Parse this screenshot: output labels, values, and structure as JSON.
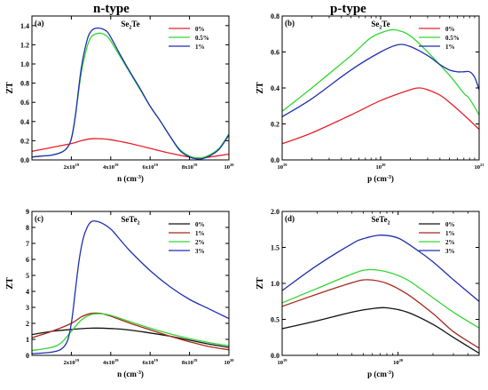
{
  "headers": {
    "left": "n-type",
    "right": "p-type"
  },
  "chart_data": [
    {
      "id": "a",
      "panel_label": "(a)",
      "type": "line",
      "title": "Se2Te",
      "title_base": "Se",
      "title_sub": "2",
      "title_tail": "Te",
      "xlabel": "n (cm",
      "xlabel_sup": "-3",
      "xlabel_close": ")",
      "ylabel": "ZT",
      "xscale": "linear",
      "xlim": [
        0,
        100
      ],
      "xunit": "1e18 cm^-3",
      "ylim": [
        0,
        1.5
      ],
      "xticks": [
        {
          "v": 20,
          "base": "2x10",
          "exp": "19"
        },
        {
          "v": 40,
          "base": "4x10",
          "exp": "19"
        },
        {
          "v": 60,
          "base": "6x10",
          "exp": "19"
        },
        {
          "v": 80,
          "base": "8x10",
          "exp": "19"
        },
        {
          "v": 100,
          "base": "10",
          "exp": "20"
        }
      ],
      "yticks": [
        {
          "v": 0.0,
          "label": "0.0"
        },
        {
          "v": 0.2,
          "label": "0.2"
        },
        {
          "v": 0.4,
          "label": "0.4"
        },
        {
          "v": 0.6,
          "label": "0.6"
        },
        {
          "v": 0.8,
          "label": "0.8"
        },
        {
          "v": 1.0,
          "label": "1.0"
        },
        {
          "v": 1.2,
          "label": "1.2"
        },
        {
          "v": 1.4,
          "label": "1.4"
        }
      ],
      "legend": "top-right",
      "series": [
        {
          "name": "0%",
          "color": "#e8202a",
          "x": [
            0,
            10,
            20,
            25,
            30,
            35,
            40,
            50,
            60,
            70,
            80,
            85,
            90,
            100
          ],
          "y": [
            0.09,
            0.13,
            0.17,
            0.2,
            0.22,
            0.22,
            0.21,
            0.17,
            0.12,
            0.07,
            0.03,
            0.02,
            0.03,
            0.06
          ]
        },
        {
          "name": "0.5%",
          "color": "#33d633",
          "x": [
            0,
            5,
            10,
            15,
            18,
            20,
            22,
            25,
            28,
            30,
            32,
            35,
            38,
            40,
            45,
            50,
            55,
            60,
            65,
            70,
            75,
            80,
            84,
            86,
            90,
            95,
            100
          ],
          "y": [
            0.03,
            0.04,
            0.05,
            0.08,
            0.13,
            0.22,
            0.45,
            0.9,
            1.18,
            1.28,
            1.31,
            1.32,
            1.29,
            1.24,
            1.07,
            0.9,
            0.73,
            0.56,
            0.41,
            0.25,
            0.11,
            0.04,
            0.02,
            0.02,
            0.05,
            0.12,
            0.27
          ]
        },
        {
          "name": "1%",
          "color": "#1f2fb0",
          "x": [
            0,
            5,
            10,
            15,
            18,
            20,
            22,
            25,
            28,
            30,
            32,
            35,
            38,
            40,
            45,
            50,
            55,
            60,
            65,
            70,
            75,
            80,
            84,
            86,
            90,
            95,
            100
          ],
          "y": [
            0.03,
            0.04,
            0.05,
            0.08,
            0.13,
            0.22,
            0.45,
            0.95,
            1.25,
            1.34,
            1.37,
            1.37,
            1.34,
            1.28,
            1.09,
            0.91,
            0.74,
            0.56,
            0.41,
            0.25,
            0.1,
            0.03,
            0.01,
            0.01,
            0.04,
            0.11,
            0.26
          ]
        }
      ]
    },
    {
      "id": "b",
      "panel_label": "(b)",
      "type": "line",
      "title": "Se2Te",
      "title_base": "Se",
      "title_sub": "2",
      "title_tail": "Te",
      "xlabel": "p (cm",
      "xlabel_sup": "-3",
      "xlabel_close": ")",
      "ylabel": "ZT",
      "xscale": "log",
      "xlim": [
        1e+19,
        1e+21
      ],
      "ylim": [
        0,
        0.8
      ],
      "xticks": [
        {
          "v": 1e+19,
          "base": "10",
          "exp": "19"
        },
        {
          "v": 1e+20,
          "base": "10",
          "exp": "20"
        },
        {
          "v": 1e+21,
          "base": "10",
          "exp": "21"
        }
      ],
      "yticks": [
        {
          "v": 0.0,
          "label": "0.0"
        },
        {
          "v": 0.2,
          "label": "0.2"
        },
        {
          "v": 0.4,
          "label": "0.4"
        },
        {
          "v": 0.6,
          "label": "0.6"
        },
        {
          "v": 0.8,
          "label": "0.8"
        }
      ],
      "legend": "top-right",
      "series": [
        {
          "name": "0%",
          "color": "#e8202a",
          "x": [
            1e+19,
            2e+19,
            5e+19,
            1e+20,
            2e+20,
            2.5e+20,
            3e+20,
            4e+20,
            5e+20,
            7e+20,
            1e+21
          ],
          "y": [
            0.09,
            0.15,
            0.25,
            0.33,
            0.39,
            0.4,
            0.39,
            0.36,
            0.32,
            0.25,
            0.17
          ]
        },
        {
          "name": "0.5%",
          "color": "#33d633",
          "x": [
            1e+19,
            2e+19,
            5e+19,
            8e+19,
            1.2e+20,
            1.5e+20,
            2e+20,
            3e+20,
            5e+20,
            7e+20,
            8e+20,
            1e+21
          ],
          "y": [
            0.27,
            0.4,
            0.58,
            0.68,
            0.72,
            0.72,
            0.69,
            0.6,
            0.47,
            0.37,
            0.34,
            0.25
          ]
        },
        {
          "name": "1%",
          "color": "#1f2fb0",
          "x": [
            1e+19,
            2e+19,
            5e+19,
            1e+20,
            1.5e+20,
            2e+20,
            3e+20,
            4e+20,
            5e+20,
            6e+20,
            7e+20,
            8e+20,
            9e+20,
            1e+21
          ],
          "y": [
            0.24,
            0.34,
            0.5,
            0.6,
            0.64,
            0.63,
            0.58,
            0.53,
            0.5,
            0.49,
            0.49,
            0.49,
            0.46,
            0.39
          ]
        }
      ]
    },
    {
      "id": "c",
      "panel_label": "(c)",
      "type": "line",
      "title": "SeTe2",
      "title_base": "SeTe",
      "title_sub": "2",
      "title_tail": "",
      "xlabel": "n (cm",
      "xlabel_sup": "-3",
      "xlabel_close": ")",
      "ylabel": "ZT",
      "xscale": "linear",
      "xlim": [
        0,
        100
      ],
      "xunit": "1e18 cm^-3",
      "ylim": [
        0,
        9
      ],
      "xticks": [
        {
          "v": 20,
          "base": "2x10",
          "exp": "19"
        },
        {
          "v": 40,
          "base": "4x10",
          "exp": "19"
        },
        {
          "v": 60,
          "base": "6x10",
          "exp": "19"
        },
        {
          "v": 80,
          "base": "8x10",
          "exp": "19"
        },
        {
          "v": 100,
          "base": "10",
          "exp": "20"
        }
      ],
      "yticks": [
        {
          "v": 0,
          "label": "0"
        },
        {
          "v": 1,
          "label": "1"
        },
        {
          "v": 2,
          "label": "2"
        },
        {
          "v": 3,
          "label": "3"
        },
        {
          "v": 4,
          "label": "4"
        },
        {
          "v": 5,
          "label": "5"
        },
        {
          "v": 6,
          "label": "6"
        },
        {
          "v": 7,
          "label": "7"
        },
        {
          "v": 8,
          "label": "8"
        },
        {
          "v": 9,
          "label": "9"
        }
      ],
      "legend": "top-right",
      "series": [
        {
          "name": "0%",
          "color": "#111111",
          "x": [
            0,
            10,
            20,
            30,
            40,
            50,
            60,
            70,
            80,
            90,
            100
          ],
          "y": [
            1.3,
            1.5,
            1.62,
            1.7,
            1.68,
            1.58,
            1.4,
            1.2,
            0.95,
            0.7,
            0.5
          ]
        },
        {
          "name": "1%",
          "color": "#a52a1a",
          "x": [
            0,
            10,
            20,
            25,
            30,
            35,
            40,
            50,
            60,
            70,
            80,
            90,
            100
          ],
          "y": [
            1.1,
            1.5,
            2.0,
            2.4,
            2.62,
            2.62,
            2.45,
            2.0,
            1.6,
            1.2,
            0.85,
            0.55,
            0.35
          ]
        },
        {
          "name": "2%",
          "color": "#33d633",
          "x": [
            0,
            10,
            15,
            20,
            25,
            30,
            35,
            40,
            50,
            60,
            70,
            80,
            90,
            100
          ],
          "y": [
            0.3,
            0.5,
            0.8,
            1.5,
            2.2,
            2.55,
            2.6,
            2.5,
            2.1,
            1.7,
            1.35,
            1.05,
            0.8,
            0.6
          ]
        },
        {
          "name": "3%",
          "color": "#1f2fb0",
          "x": [
            0,
            10,
            15,
            18,
            20,
            22,
            24,
            26,
            28,
            30,
            32,
            35,
            40,
            45,
            50,
            60,
            70,
            80,
            90,
            100
          ],
          "y": [
            0.1,
            0.2,
            0.4,
            0.9,
            2.0,
            4.0,
            6.0,
            7.3,
            8.0,
            8.35,
            8.4,
            8.3,
            7.9,
            7.2,
            6.5,
            5.3,
            4.3,
            3.5,
            2.9,
            2.3
          ]
        }
      ]
    },
    {
      "id": "d",
      "panel_label": "(d)",
      "type": "line",
      "title": "SeTe2",
      "title_base": "SeTe",
      "title_sub": "2",
      "title_tail": "",
      "xlabel": "p (cm",
      "xlabel_sup": "-3",
      "xlabel_close": ")",
      "ylabel": "ZT",
      "xscale": "log",
      "xlim": [
        1e+19,
        5e+20
      ],
      "ylim": [
        0,
        2
      ],
      "xticks": [
        {
          "v": 1e+19,
          "base": "10",
          "exp": "19"
        },
        {
          "v": 1e+20,
          "base": "10",
          "exp": "20"
        }
      ],
      "yticks": [
        {
          "v": 0.0,
          "label": "0.0"
        },
        {
          "v": 0.5,
          "label": "0.5"
        },
        {
          "v": 1.0,
          "label": "1.0"
        },
        {
          "v": 1.5,
          "label": "1.5"
        },
        {
          "v": 2.0,
          "label": "2.0"
        }
      ],
      "legend": "top-right",
      "series": [
        {
          "name": "0%",
          "color": "#111111",
          "x": [
            1e+19,
            2e+19,
            4e+19,
            6e+19,
            8e+19,
            1.2e+20,
            2e+20,
            3e+20,
            5e+20
          ],
          "y": [
            0.37,
            0.48,
            0.6,
            0.65,
            0.66,
            0.6,
            0.43,
            0.25,
            0.03
          ]
        },
        {
          "name": "1%",
          "color": "#a52a1a",
          "x": [
            1e+19,
            2e+19,
            4e+19,
            5.5e+19,
            8e+19,
            1.2e+20,
            2e+20,
            3e+20,
            5e+20
          ],
          "y": [
            0.68,
            0.85,
            1.01,
            1.05,
            1.0,
            0.85,
            0.58,
            0.33,
            0.1
          ]
        },
        {
          "name": "2%",
          "color": "#33d633",
          "x": [
            1e+19,
            2e+19,
            4e+19,
            5.5e+19,
            8e+19,
            1.2e+20,
            2e+20,
            3e+20,
            5e+20
          ],
          "y": [
            0.73,
            0.93,
            1.13,
            1.19,
            1.16,
            1.05,
            0.8,
            0.6,
            0.38
          ]
        },
        {
          "name": "3%",
          "color": "#1f2fb0",
          "x": [
            1e+19,
            2e+19,
            4e+19,
            5e+19,
            7e+19,
            1e+20,
            1.5e+20,
            2e+20,
            3e+20,
            5e+20
          ],
          "y": [
            0.9,
            1.25,
            1.55,
            1.62,
            1.67,
            1.63,
            1.45,
            1.3,
            1.05,
            0.75
          ]
        }
      ]
    }
  ]
}
